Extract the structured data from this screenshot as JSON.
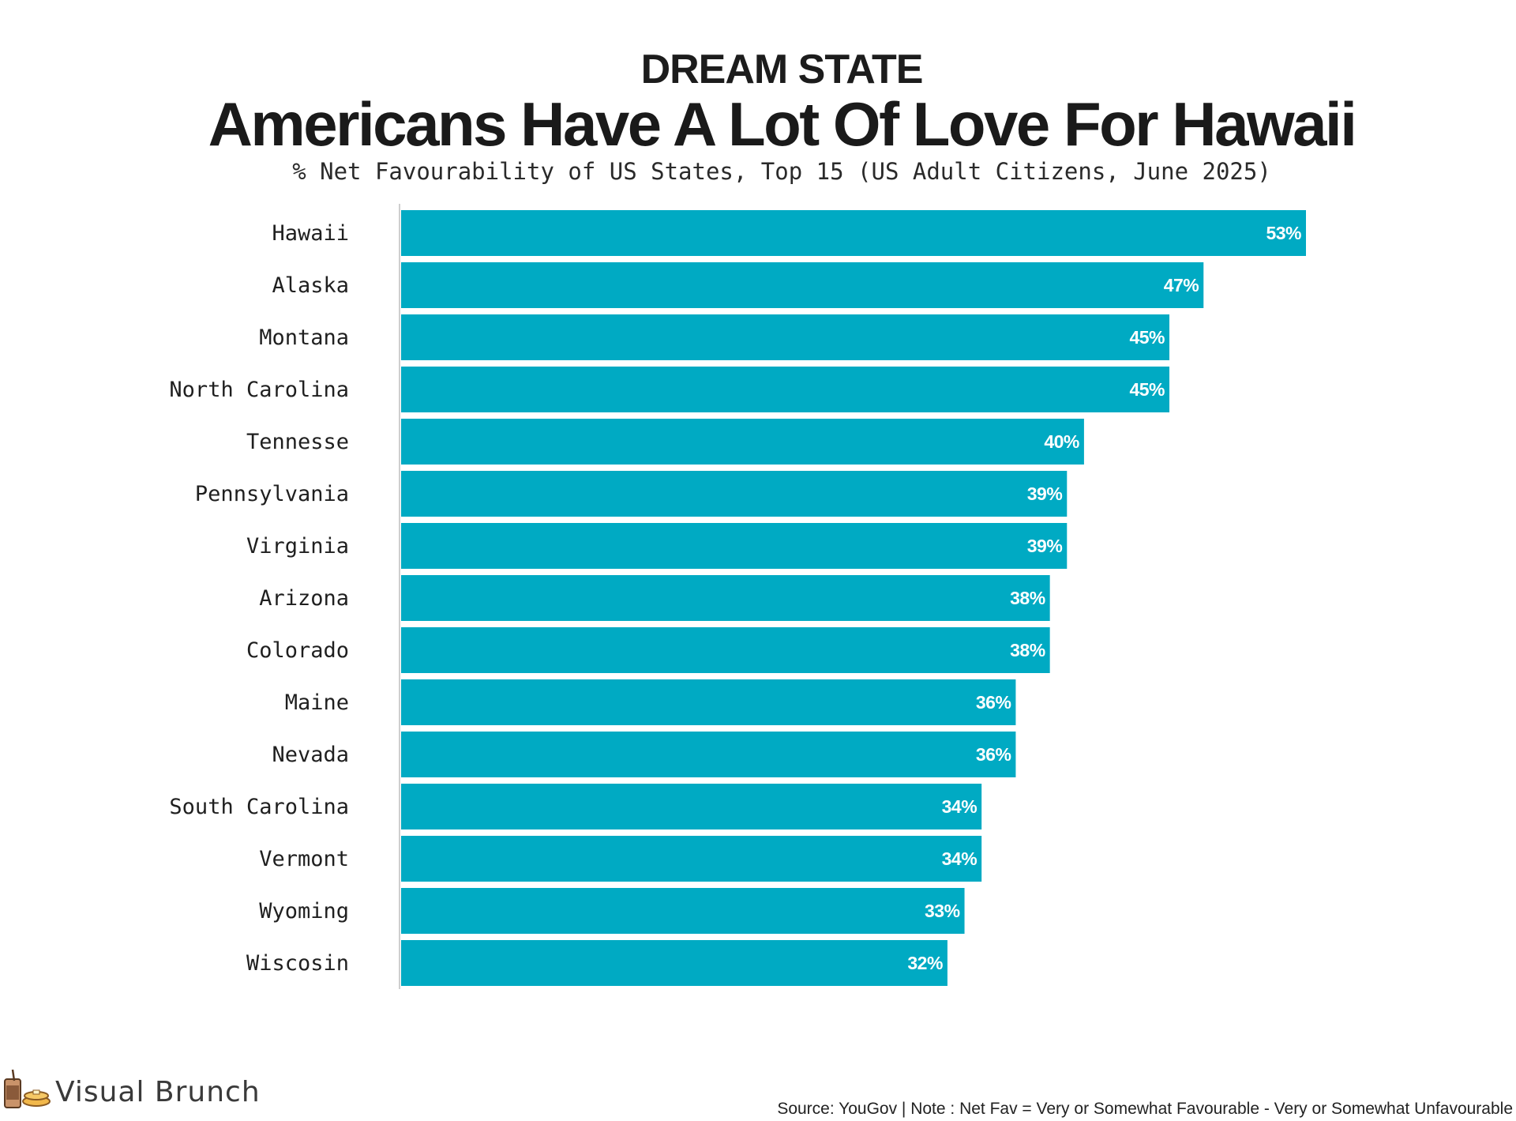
{
  "kicker": "DREAM STATE",
  "title": "Americans Have A Lot Of Love For Hawaii",
  "subtitle": "% Net Favourability of US States, Top 15 (US Adult Citizens, June 2025)",
  "brand": {
    "logo_text": "Visual Brunch"
  },
  "source": "Source: YouGov | Note : Net Fav = Very or Somewhat Favourable - Very or Somewhat Unfavourable",
  "colors": {
    "bar": "#00AAC3",
    "axis": "#cfcfcf",
    "value_label": "#ffffff"
  },
  "chart_data": {
    "type": "bar",
    "orientation": "horizontal",
    "categories": [
      "Hawaii",
      "Alaska",
      "Montana",
      "North Carolina",
      "Tennesse",
      "Pennsylvania",
      "Virginia",
      "Arizona",
      "Colorado",
      "Maine",
      "Nevada",
      "South Carolina",
      "Vermont",
      "Wyoming",
      "Wiscosin"
    ],
    "values": [
      53,
      47,
      45,
      45,
      40,
      39,
      39,
      38,
      38,
      36,
      36,
      34,
      34,
      33,
      32
    ],
    "value_labels": [
      "53%",
      "47%",
      "45%",
      "45%",
      "40%",
      "39%",
      "39%",
      "38%",
      "38%",
      "36%",
      "36%",
      "34%",
      "34%",
      "33%",
      "32%"
    ],
    "xlim": [
      0,
      53
    ],
    "grid": false,
    "legend": "none"
  }
}
